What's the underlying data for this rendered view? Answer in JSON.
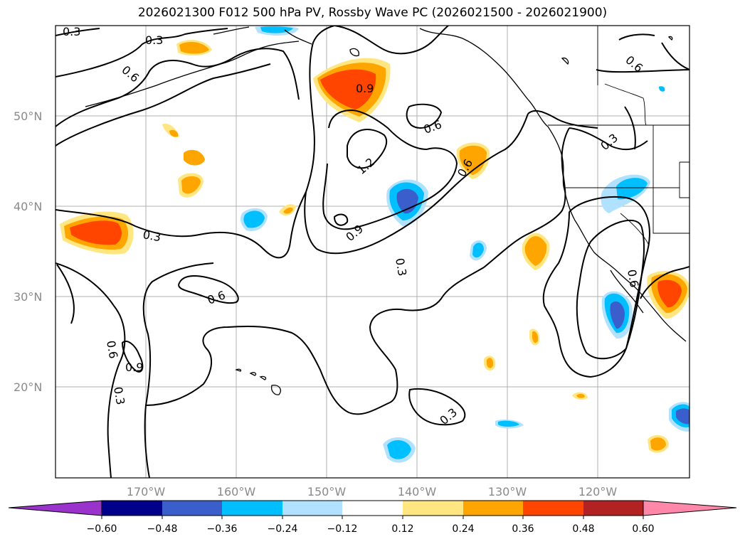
{
  "title": "2026021300 F012 500 hPa PV, Rossby Wave PC (2026021500 - 2026021900)",
  "map": {
    "lat_labels": [
      "20°N",
      "30°N",
      "40°N",
      "50°N"
    ],
    "lon_labels": [
      "170°W",
      "160°W",
      "150°W",
      "140°W",
      "130°W",
      "120°W"
    ],
    "contour_labels": [
      "0.3",
      "0.3",
      "0.6",
      "0.6",
      "0.9",
      "1.2",
      "0.6",
      "0.3",
      "0.6",
      "0.3",
      "0.6",
      "0.9",
      "0.3",
      "0.6",
      "0.9",
      "0.6",
      "0.3",
      "0.3",
      "0.9",
      "0.3",
      "0.6"
    ],
    "colors": {
      "land_border": "#000000",
      "grid": "#b0b0b0",
      "contour": "#000000"
    }
  },
  "colorbar": {
    "ticks": [
      "−0.60",
      "−0.48",
      "−0.36",
      "−0.24",
      "−0.12",
      "0.12",
      "0.24",
      "0.36",
      "0.48",
      "0.60"
    ],
    "colors": [
      "#9933cc",
      "#00008b",
      "#3a5fcd",
      "#00bfff",
      "#b0e2ff",
      "#ffffff",
      "#ffe680",
      "#ffa500",
      "#ff4500",
      "#b22222",
      "#ff88aa"
    ]
  }
}
